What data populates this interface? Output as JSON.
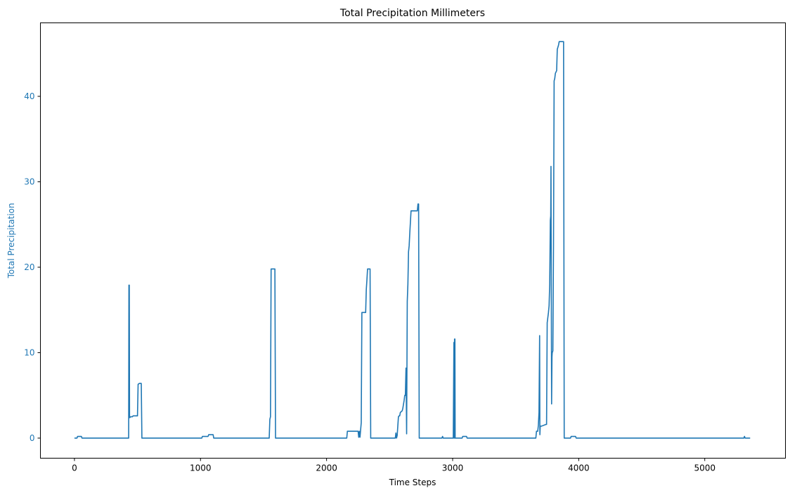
{
  "colors": {
    "series": "#1f77b4",
    "ylabel": "#1f77b4",
    "ytick": "#1f77b4",
    "axis": "#000000",
    "background": "#ffffff"
  },
  "chart_data": {
    "type": "line",
    "title": "Total Precipitation Millimeters",
    "xlabel": "Time Steps",
    "ylabel": "Total Precipitation",
    "xlim": [
      -270,
      5640
    ],
    "ylim": [
      -2.35,
      48.6
    ],
    "xticks": [
      0,
      1000,
      2000,
      3000,
      4000,
      5000
    ],
    "xtick_labels": [
      "0",
      "1000",
      "2000",
      "3000",
      "4000",
      "5000"
    ],
    "yticks": [
      0,
      10,
      20,
      30,
      40
    ],
    "ytick_labels": [
      "0",
      "10",
      "20",
      "30",
      "40"
    ],
    "grid": false,
    "legend": "none",
    "series": [
      {
        "x": [
          0,
          20,
          25,
          55,
          60,
          430,
          432,
          435,
          437,
          440,
          445,
          460,
          465,
          500,
          505,
          515,
          520,
          530,
          535,
          1010,
          1015,
          1060,
          1065,
          1100,
          1105,
          1545,
          1550,
          1555,
          1560,
          1565,
          1570,
          1590,
          1595,
          2160,
          2165,
          2250,
          2255,
          2260,
          2265,
          2275,
          2280,
          2310,
          2315,
          2320,
          2325,
          2335,
          2340,
          2345,
          2350,
          2545,
          2550,
          2555,
          2560,
          2570,
          2575,
          2580,
          2585,
          2600,
          2605,
          2615,
          2620,
          2625,
          2630,
          2635,
          2640,
          2645,
          2650,
          2655,
          2660,
          2670,
          2675,
          2685,
          2690,
          2720,
          2725,
          2730,
          2735,
          2915,
          2920,
          2925,
          3005,
          3010,
          3013,
          3015,
          3018,
          3020,
          3075,
          3080,
          3110,
          3115,
          3660,
          3665,
          3675,
          3680,
          3685,
          3690,
          3692,
          3695,
          3700,
          3705,
          3740,
          3745,
          3750,
          3760,
          3765,
          3770,
          3775,
          3778,
          3780,
          3785,
          3788,
          3790,
          3795,
          3800,
          3805,
          3810,
          3815,
          3825,
          3830,
          3840,
          3845,
          3855,
          3860,
          3870,
          3875,
          3880,
          3885,
          3890,
          3935,
          3940,
          3975,
          3980,
          5310,
          5315,
          5320,
          5360
        ],
        "y": [
          0.0,
          0.0,
          0.2,
          0.2,
          0.0,
          0.0,
          17.9,
          17.9,
          2.4,
          2.4,
          2.5,
          2.5,
          2.6,
          2.6,
          6.3,
          6.4,
          6.4,
          6.4,
          0.0,
          0.0,
          0.2,
          0.2,
          0.4,
          0.4,
          0.0,
          0.0,
          2.2,
          2.5,
          19.8,
          19.8,
          19.8,
          19.8,
          0.0,
          0.0,
          0.8,
          0.8,
          0.1,
          0.8,
          0.1,
          1.8,
          14.7,
          14.7,
          17.4,
          18.5,
          19.8,
          19.8,
          19.8,
          19.8,
          0.0,
          0.0,
          0.6,
          0.0,
          0.3,
          2.5,
          2.6,
          2.6,
          3.0,
          3.2,
          3.5,
          4.4,
          5.0,
          5.0,
          8.2,
          0.5,
          16.0,
          18.0,
          21.8,
          22.5,
          24.0,
          26.6,
          26.6,
          26.6,
          26.6,
          26.6,
          27.4,
          27.4,
          0.0,
          0.0,
          0.2,
          0.0,
          0.0,
          11.2,
          0.0,
          11.6,
          11.6,
          0.0,
          0.0,
          0.2,
          0.2,
          0.0,
          0.0,
          0.8,
          0.8,
          1.5,
          3.0,
          12.0,
          0.4,
          1.4,
          1.4,
          1.4,
          1.6,
          1.6,
          13.5,
          14.7,
          15.5,
          18.0,
          25.5,
          26.0,
          31.8,
          4.0,
          9.5,
          10.0,
          10.2,
          22.5,
          41.8,
          42.1,
          42.7,
          43.0,
          45.5,
          46.0,
          46.4,
          46.4,
          46.4,
          46.4,
          46.4,
          46.4,
          0.0,
          0.0,
          0.0,
          0.2,
          0.2,
          0.0,
          0.0,
          0.2,
          0.0,
          0.0
        ]
      }
    ]
  }
}
